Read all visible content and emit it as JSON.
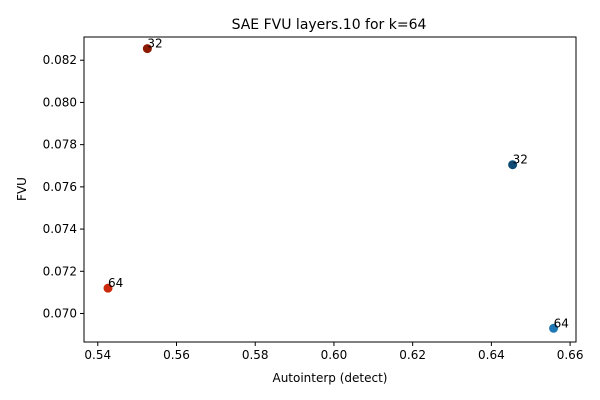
{
  "chart_data": {
    "type": "scatter",
    "title": "SAE FVU layers.10 for k=64",
    "xlabel": "Autointerp (detect)",
    "ylabel": "FVU",
    "xlim": [
      0.5365,
      0.6615
    ],
    "ylim": [
      0.06865,
      0.0831
    ],
    "xticks": [
      0.54,
      0.56,
      0.58,
      0.6,
      0.62,
      0.64,
      0.66
    ],
    "xtick_labels": [
      "0.54",
      "0.56",
      "0.58",
      "0.60",
      "0.62",
      "0.64",
      "0.66"
    ],
    "yticks": [
      0.07,
      0.072,
      0.074,
      0.076,
      0.078,
      0.08,
      0.082
    ],
    "ytick_labels": [
      "0.070",
      "0.072",
      "0.074",
      "0.076",
      "0.078",
      "0.080",
      "0.082"
    ],
    "grid": false,
    "points": [
      {
        "x": 0.5526,
        "y": 0.08255,
        "label": "32",
        "color": "#8b1a00"
      },
      {
        "x": 0.6454,
        "y": 0.07705,
        "label": "32",
        "color": "#0f4c75"
      },
      {
        "x": 0.5426,
        "y": 0.0712,
        "label": "64",
        "color": "#cc2a0c"
      },
      {
        "x": 0.6558,
        "y": 0.0693,
        "label": "64",
        "color": "#1f77b4"
      }
    ]
  }
}
